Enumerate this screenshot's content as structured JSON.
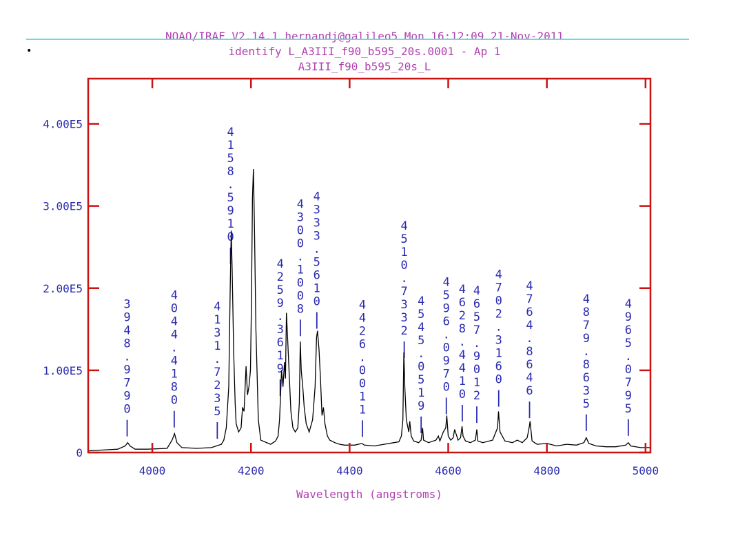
{
  "header": {
    "line1": "NOAO/IRAF V2.14.1 hernandj@galileo5 Mon 16:12:09 21-Nov-2011",
    "line2": "identify L_A3III_f90_b595_20s.0001 - Ap 1",
    "line3": "A3III_f90_b595_20s_L"
  },
  "colors": {
    "header": "#b040b0",
    "axes_frame": "#cc1111",
    "tick_labels": "#2a2ab0",
    "spectrum": "#000000",
    "line_ids": "#2a2ab0",
    "header_rule": "#66dddd"
  },
  "chart_data": {
    "type": "line",
    "title": "",
    "xlabel": "Wavelength (angstroms)",
    "ylabel": "",
    "xlim": [
      3870,
      5010
    ],
    "ylim": [
      0,
      455000
    ],
    "x_ticks": [
      4000,
      4200,
      4400,
      4600,
      4800,
      5000
    ],
    "x_tick_labels": [
      "4000",
      "4200",
      "4400",
      "4600",
      "4800",
      "5000"
    ],
    "y_ticks": [
      0,
      100000,
      200000,
      300000,
      400000
    ],
    "y_tick_labels": [
      "0",
      "1.00E5",
      "2.00E5",
      "3.00E5",
      "4.00E5"
    ],
    "grid": false,
    "series": [
      {
        "x": [
          3870,
          3900,
          3930,
          3945,
          3950,
          3955,
          3965,
          3990,
          4030,
          4040,
          4045,
          4050,
          4060,
          4090,
          4120,
          4130,
          4140,
          4145,
          4150,
          4155,
          4158,
          4160,
          4162,
          4165,
          4168,
          4170,
          4175,
          4180,
          4183,
          4186,
          4190,
          4193,
          4196,
          4199,
          4201,
          4203,
          4205,
          4207,
          4210,
          4215,
          4220,
          4240,
          4250,
          4255,
          4258,
          4260,
          4262,
          4265,
          4268,
          4270,
          4272,
          4275,
          4278,
          4281,
          4285,
          4290,
          4295,
          4298,
          4300,
          4302,
          4305,
          4308,
          4312,
          4318,
          4325,
          4330,
          4333,
          4335,
          4338,
          4341,
          4344,
          4347,
          4350,
          4355,
          4360,
          4370,
          4380,
          4390,
          4410,
          4425,
          4430,
          4450,
          4470,
          4490,
          4500,
          4505,
          4508,
          4510,
          4512,
          4515,
          4520,
          4522,
          4525,
          4530,
          4540,
          4545,
          4548,
          4550,
          4560,
          4575,
          4580,
          4583,
          4590,
          4595,
          4597,
          4600,
          4605,
          4610,
          4613,
          4620,
          4625,
          4628,
          4630,
          4635,
          4645,
          4655,
          4658,
          4660,
          4670,
          4690,
          4700,
          4702,
          4705,
          4715,
          4730,
          4740,
          4750,
          4760,
          4764,
          4766,
          4770,
          4780,
          4800,
          4820,
          4840,
          4860,
          4875,
          4880,
          4885,
          4900,
          4920,
          4940,
          4960,
          4965,
          4970,
          4990,
          5010
        ],
        "y": [
          2000,
          3000,
          4000,
          8000,
          12000,
          8000,
          4000,
          4000,
          5000,
          15000,
          23000,
          12000,
          6000,
          5000,
          6000,
          8000,
          10000,
          15000,
          30000,
          80000,
          200000,
          270000,
          220000,
          120000,
          60000,
          35000,
          25000,
          30000,
          55000,
          50000,
          105000,
          70000,
          80000,
          100000,
          180000,
          310000,
          345000,
          280000,
          150000,
          40000,
          15000,
          10000,
          14000,
          20000,
          40000,
          70000,
          100000,
          80000,
          110000,
          90000,
          170000,
          130000,
          90000,
          50000,
          30000,
          25000,
          30000,
          60000,
          135000,
          100000,
          80000,
          55000,
          35000,
          25000,
          40000,
          80000,
          140000,
          148000,
          125000,
          90000,
          45000,
          55000,
          35000,
          20000,
          15000,
          12000,
          10000,
          9000,
          9000,
          11000,
          9000,
          8000,
          10000,
          12000,
          13000,
          20000,
          40000,
          122000,
          80000,
          40000,
          25000,
          38000,
          20000,
          14000,
          12000,
          15000,
          30000,
          15000,
          12000,
          15000,
          20000,
          14000,
          25000,
          30000,
          45000,
          20000,
          15000,
          18000,
          28000,
          15000,
          18000,
          32000,
          20000,
          14000,
          12000,
          15000,
          28000,
          14000,
          12000,
          15000,
          30000,
          50000,
          25000,
          14000,
          12000,
          15000,
          12000,
          18000,
          30000,
          38000,
          14000,
          10000,
          11000,
          8000,
          10000,
          9000,
          12000,
          18000,
          11000,
          8000,
          7000,
          7000,
          9000,
          12000,
          8000,
          6000,
          6000
        ]
      }
    ],
    "line_ids": [
      {
        "x": 3948.979,
        "label": "3948.9790"
      },
      {
        "x": 4044.418,
        "label": "4044.4180"
      },
      {
        "x": 4131.7235,
        "label": "4131.7235"
      },
      {
        "x": 4158.591,
        "label": "4158.5910"
      },
      {
        "x": 4259.3619,
        "label": "4259.3619"
      },
      {
        "x": 4300.1008,
        "label": "4300.1008"
      },
      {
        "x": 4333.561,
        "label": "4333.5610"
      },
      {
        "x": 4426.0011,
        "label": "4426.0011"
      },
      {
        "x": 4510.7332,
        "label": "4510.7332"
      },
      {
        "x": 4545.0519,
        "label": "4545.0519"
      },
      {
        "x": 4596.097,
        "label": "4596.0970"
      },
      {
        "x": 4628.441,
        "label": "4628.4410"
      },
      {
        "x": 4657.9012,
        "label": "4657.9012"
      },
      {
        "x": 4702.316,
        "label": "4702.3160"
      },
      {
        "x": 4764.8646,
        "label": "4764.8646"
      },
      {
        "x": 4879.8635,
        "label": "4879.8635"
      },
      {
        "x": 4965.0795,
        "label": "4965.0795"
      }
    ]
  }
}
